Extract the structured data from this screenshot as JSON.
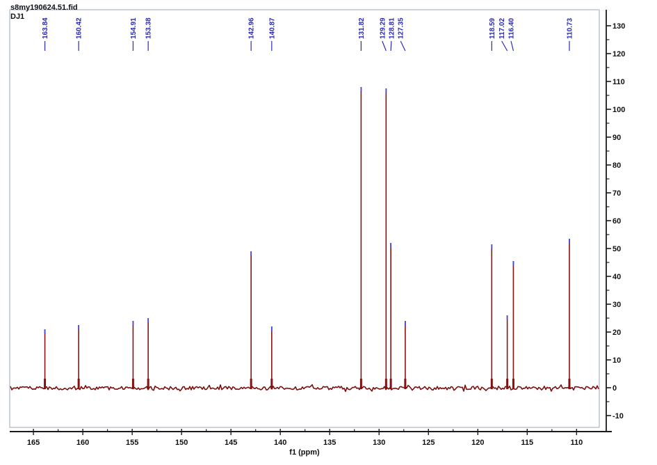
{
  "chart_data": {
    "type": "line",
    "title": "s8my190624.51.fid",
    "subtitle": "DJ1",
    "xlabel": "f1 (ppm)",
    "x_axis": {
      "label": "f1 (ppm)",
      "unit": "ppm",
      "min": 107.7,
      "max": 167.4,
      "inverted": true,
      "major_ticks": [
        165,
        160,
        155,
        150,
        145,
        140,
        135,
        130,
        125,
        120,
        115,
        110
      ],
      "minor_tick_step": 2.5
    },
    "y_axis": {
      "min": -13,
      "max": 135,
      "side": "right",
      "major_ticks": [
        -10,
        0,
        10,
        20,
        30,
        40,
        50,
        60,
        70,
        80,
        90,
        100,
        110,
        120,
        130
      ],
      "minor_tick_step": 5
    },
    "colors": {
      "trace": "#8b1113",
      "noise": "#7c0e0e",
      "peak_cap": "#4646e0",
      "peak_label": "#2a2ab8",
      "axis": "#1a1a1a",
      "frame": "#b9c0ca"
    },
    "peaks": [
      {
        "ppm": 163.84,
        "intensity": 21,
        "label": "163.84"
      },
      {
        "ppm": 160.42,
        "intensity": 22.5,
        "label": "160.42"
      },
      {
        "ppm": 154.91,
        "intensity": 24,
        "label": "154.91"
      },
      {
        "ppm": 153.38,
        "intensity": 25,
        "label": "153.38"
      },
      {
        "ppm": 142.96,
        "intensity": 49,
        "label": "142.96"
      },
      {
        "ppm": 140.87,
        "intensity": 22,
        "label": "140.87"
      },
      {
        "ppm": 131.82,
        "intensity": 108,
        "label": "131.82"
      },
      {
        "ppm": 129.29,
        "intensity": 107.5,
        "label": "129.29",
        "label_ppm": 129.68
      },
      {
        "ppm": 128.81,
        "intensity": 52,
        "label": "128.81",
        "label_ppm": 128.76
      },
      {
        "ppm": 127.35,
        "intensity": 24,
        "label": "127.35",
        "label_ppm": 127.82
      },
      {
        "ppm": 118.59,
        "intensity": 51.5,
        "label": "118.59"
      },
      {
        "ppm": 117.02,
        "intensity": 26,
        "label": "117.02",
        "label_ppm": 117.58
      },
      {
        "ppm": 116.4,
        "intensity": 45.5,
        "label": "116.40",
        "label_ppm": 116.64
      },
      {
        "ppm": 110.73,
        "intensity": 53.5,
        "label": "110.73"
      }
    ]
  }
}
